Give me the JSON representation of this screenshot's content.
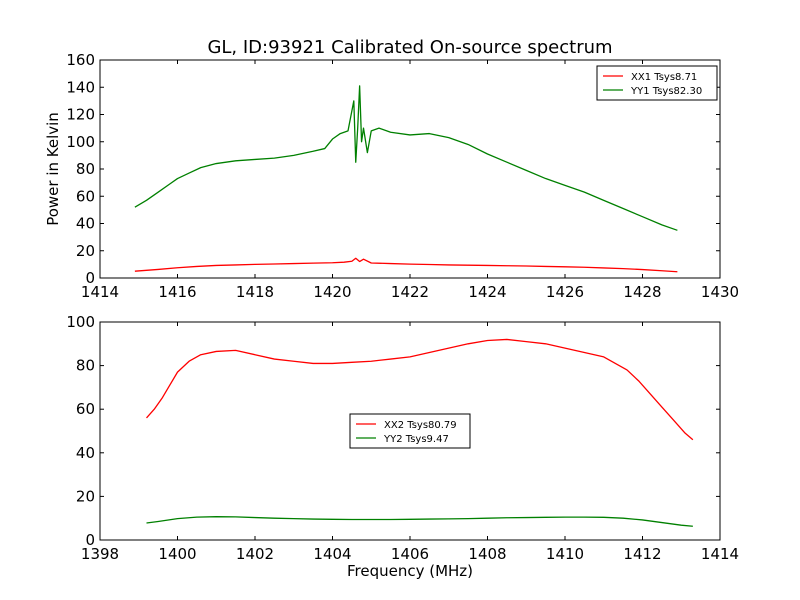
{
  "title": "GL, ID:93921 Calibrated On-source spectrum",
  "xlabel_bottom": "Frequency (MHz)",
  "ylabel_top": "Power in Kelvin",
  "colors": {
    "red": "#ff0000",
    "green": "#008000"
  },
  "chart_data": [
    {
      "type": "line",
      "title": "GL, ID:93921 Calibrated On-source spectrum",
      "xlabel": "",
      "ylabel": "Power in Kelvin",
      "xlim": [
        1414,
        1430
      ],
      "ylim": [
        0,
        160
      ],
      "xticks": [
        1414,
        1416,
        1418,
        1420,
        1422,
        1424,
        1426,
        1428,
        1430
      ],
      "yticks": [
        0,
        20,
        40,
        60,
        80,
        100,
        120,
        140,
        160
      ],
      "legend_location": "top-right",
      "grid": false,
      "series": [
        {
          "name": "XX1 Tsys8.71",
          "color": "#ff0000",
          "x": [
            1414.9,
            1415.5,
            1416,
            1416.5,
            1417,
            1417.5,
            1418,
            1418.5,
            1419,
            1419.5,
            1420,
            1420.3,
            1420.5,
            1420.6,
            1420.7,
            1420.8,
            1421,
            1421.5,
            1422,
            1422.5,
            1423,
            1423.5,
            1424,
            1424.5,
            1425,
            1425.5,
            1426,
            1426.5,
            1427,
            1427.5,
            1428,
            1428.5,
            1428.9
          ],
          "values": [
            5,
            6.3,
            7.5,
            8.5,
            9.2,
            9.6,
            10,
            10.3,
            10.6,
            10.9,
            11.2,
            11.6,
            12.3,
            14.5,
            12.1,
            13.8,
            11,
            10.6,
            10.2,
            9.9,
            9.6,
            9.4,
            9.2,
            9,
            8.8,
            8.5,
            8.2,
            7.9,
            7.4,
            6.9,
            6.2,
            5.3,
            4.6
          ]
        },
        {
          "name": "YY1 Tsys82.30",
          "color": "#008000",
          "x": [
            1414.9,
            1415.2,
            1415.5,
            1415.8,
            1416.0,
            1416.3,
            1416.6,
            1417.0,
            1417.5,
            1418.0,
            1418.5,
            1419.0,
            1419.5,
            1419.8,
            1420.0,
            1420.2,
            1420.4,
            1420.55,
            1420.6,
            1420.65,
            1420.7,
            1420.75,
            1420.8,
            1420.9,
            1421.0,
            1421.2,
            1421.5,
            1422.0,
            1422.5,
            1423.0,
            1423.5,
            1424.0,
            1424.5,
            1425.0,
            1425.5,
            1426.0,
            1426.5,
            1427.0,
            1427.5,
            1428.0,
            1428.5,
            1428.9
          ],
          "values": [
            52,
            57,
            63,
            69,
            73,
            77,
            81,
            84,
            86,
            87,
            88,
            90,
            93,
            95,
            102,
            106,
            108,
            130,
            85,
            110,
            141,
            100,
            110,
            92,
            108,
            110,
            107,
            105,
            106,
            103,
            98,
            91,
            85,
            79,
            73,
            68,
            63,
            57,
            51,
            45,
            39,
            35
          ]
        }
      ]
    },
    {
      "type": "line",
      "title": "",
      "xlabel": "Frequency (MHz)",
      "ylabel": "",
      "xlim": [
        1398,
        1414
      ],
      "ylim": [
        0,
        100
      ],
      "xticks": [
        1398,
        1400,
        1402,
        1404,
        1406,
        1408,
        1410,
        1412,
        1414
      ],
      "yticks": [
        0,
        20,
        40,
        60,
        80,
        100
      ],
      "legend_location": "center",
      "grid": false,
      "series": [
        {
          "name": "XX2 Tsys80.79",
          "color": "#ff0000",
          "x": [
            1399.2,
            1399.4,
            1399.6,
            1399.8,
            1400.0,
            1400.3,
            1400.6,
            1401.0,
            1401.5,
            1402.0,
            1402.5,
            1403.0,
            1403.5,
            1404.0,
            1404.5,
            1405.0,
            1405.5,
            1406.0,
            1406.5,
            1407.0,
            1407.5,
            1408.0,
            1408.5,
            1409.0,
            1409.5,
            1410.0,
            1410.5,
            1411.0,
            1411.3,
            1411.6,
            1411.9,
            1412.2,
            1412.5,
            1412.8,
            1413.1,
            1413.3
          ],
          "values": [
            56,
            60,
            65,
            71,
            77,
            82,
            85,
            86.5,
            87,
            85,
            83,
            82,
            81,
            81,
            81.5,
            82,
            83,
            84,
            86,
            88,
            90,
            91.5,
            92,
            91,
            90,
            88,
            86,
            84,
            81,
            78,
            73,
            67,
            61,
            55,
            49,
            46
          ]
        },
        {
          "name": "YY2 Tsys9.47",
          "color": "#008000",
          "x": [
            1399.2,
            1399.5,
            1400.0,
            1400.5,
            1401.0,
            1401.5,
            1402.0,
            1402.5,
            1403.0,
            1403.5,
            1404.0,
            1404.5,
            1405.0,
            1405.5,
            1406.0,
            1406.5,
            1407.0,
            1407.5,
            1408.0,
            1408.5,
            1409.0,
            1409.5,
            1410.0,
            1410.5,
            1411.0,
            1411.5,
            1412.0,
            1412.5,
            1413.0,
            1413.3
          ],
          "values": [
            7.8,
            8.5,
            9.8,
            10.5,
            10.7,
            10.6,
            10.3,
            10,
            9.8,
            9.6,
            9.5,
            9.4,
            9.4,
            9.4,
            9.5,
            9.6,
            9.7,
            9.8,
            10,
            10.2,
            10.3,
            10.4,
            10.5,
            10.5,
            10.4,
            10,
            9.2,
            8,
            6.8,
            6.3
          ]
        }
      ]
    }
  ]
}
